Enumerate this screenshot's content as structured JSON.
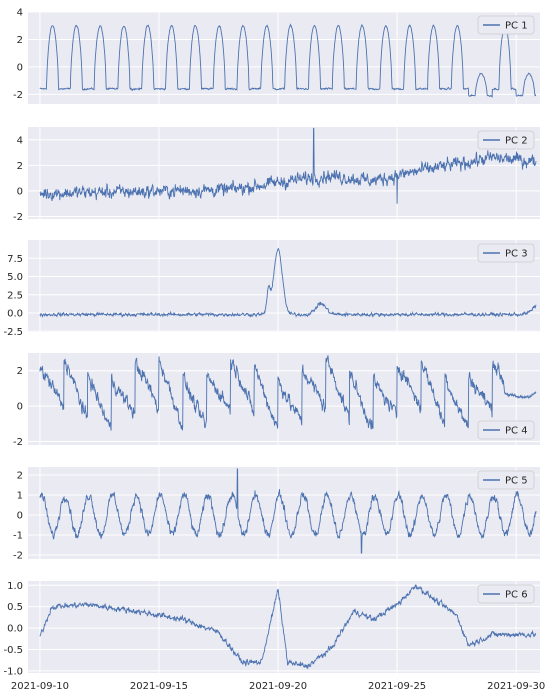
{
  "figure": {
    "background": "#ffffff",
    "panel_background": "#eaeaf2",
    "grid_color": "#ffffff",
    "line_color": "#4c72b0"
  },
  "chart_data": [
    {
      "type": "line",
      "series": [
        {
          "name": "PC 1"
        }
      ],
      "legend": "top-right",
      "ylim": [
        -2.7,
        4.0
      ],
      "yticks": [
        "-2",
        "0",
        "2",
        "4"
      ],
      "ytick_values": [
        -2,
        0,
        2,
        4
      ],
      "grid": true,
      "pattern": {
        "shape": "daily-cycle",
        "base": -1.6,
        "amplitude": 4.6,
        "dip_days": [
          18,
          20,
          25,
          29
        ],
        "noise": 0.1
      }
    },
    {
      "type": "line",
      "series": [
        {
          "name": "PC 2"
        }
      ],
      "legend": "top-right",
      "ylim": [
        -2.2,
        5.0
      ],
      "yticks": [
        "-2",
        "0",
        "2",
        "4"
      ],
      "ytick_values": [
        -2,
        0,
        2,
        4
      ],
      "grid": true,
      "pattern": {
        "shape": "noisy-level",
        "segments": [
          [
            0,
            -0.2
          ],
          [
            8,
            0.1
          ],
          [
            12,
            1.2
          ],
          [
            14,
            0.8
          ],
          [
            16,
            1.6
          ],
          [
            19,
            2.6
          ],
          [
            21,
            2.3
          ],
          [
            23,
            0.3
          ],
          [
            26,
            -0.7
          ],
          [
            27,
            -1.2
          ],
          [
            31.2,
            -1.0
          ]
        ],
        "noise": 0.8,
        "extremes": [
          [
            11.5,
            4.9
          ],
          [
            15.0,
            -1.0
          ],
          [
            21.9,
            3.9
          ]
        ]
      }
    },
    {
      "type": "line",
      "series": [
        {
          "name": "PC 3"
        }
      ],
      "legend": "top-right",
      "ylim": [
        -2.6,
        10.0
      ],
      "yticks": [
        "-2.5",
        "0.0",
        "2.5",
        "5.0",
        "7.5"
      ],
      "ytick_values": [
        -2.5,
        0,
        2.5,
        5,
        7.5
      ],
      "grid": true,
      "pattern": {
        "shape": "flat-with-spikes",
        "base": -0.2,
        "noise": 0.35,
        "spikes": [
          [
            9.6,
            3.2,
            0.1
          ],
          [
            10.0,
            9.0,
            0.25
          ],
          [
            11.8,
            1.5,
            0.3
          ],
          [
            21.3,
            3.2,
            0.5
          ]
        ]
      }
    },
    {
      "type": "line",
      "series": [
        {
          "name": "PC 4"
        }
      ],
      "legend": "bottom-right",
      "ylim": [
        -2.2,
        3.0
      ],
      "yticks": [
        "-2",
        "0",
        "2"
      ],
      "ytick_values": [
        -2,
        0,
        2
      ],
      "grid": true,
      "pattern": {
        "shape": "sawtooth-drops",
        "base": 0.8,
        "amplitude": 2.2,
        "noise": 0.6,
        "calm_from_day": 19.5,
        "calm_level": 0.8
      }
    },
    {
      "type": "line",
      "series": [
        {
          "name": "PC 5"
        }
      ],
      "legend": "top-right",
      "ylim": [
        -2.2,
        2.4
      ],
      "yticks": [
        "-2",
        "-1",
        "0",
        "1",
        "2"
      ],
      "ytick_values": [
        -2,
        -1,
        0,
        1,
        2
      ],
      "grid": true,
      "pattern": {
        "shape": "daily-oscillation",
        "base": 0.0,
        "amplitude": 1.0,
        "noise": 0.35,
        "extremes": [
          [
            8.3,
            2.3
          ],
          [
            13.5,
            -1.9
          ]
        ]
      }
    },
    {
      "type": "line",
      "series": [
        {
          "name": "PC 6"
        }
      ],
      "legend": "top-right",
      "ylim": [
        -1.05,
        1.1
      ],
      "yticks": [
        "-1.0",
        "-0.5",
        "0.0",
        "0.5",
        "1.0"
      ],
      "ytick_values": [
        -1.0,
        -0.5,
        0.0,
        0.5,
        1.0
      ],
      "grid": true,
      "pattern": {
        "shape": "slow-wave",
        "segments": [
          [
            0,
            -0.2
          ],
          [
            0.5,
            0.5
          ],
          [
            2,
            0.55
          ],
          [
            4,
            0.4
          ],
          [
            6,
            0.2
          ],
          [
            7.5,
            -0.1
          ],
          [
            8.5,
            -0.8
          ],
          [
            9.3,
            -0.8
          ],
          [
            10.0,
            0.9
          ],
          [
            10.4,
            -0.8
          ],
          [
            11.2,
            -0.9
          ],
          [
            12.2,
            -0.5
          ],
          [
            13.2,
            0.4
          ],
          [
            14.0,
            0.2
          ],
          [
            15.0,
            0.55
          ],
          [
            15.8,
            1.0
          ],
          [
            16.6,
            0.65
          ],
          [
            17.5,
            0.3
          ],
          [
            18.0,
            -0.4
          ],
          [
            19,
            -0.15
          ],
          [
            21,
            -0.15
          ],
          [
            22.5,
            0.35
          ],
          [
            23.6,
            0.5
          ],
          [
            24.0,
            0.05
          ]
        ],
        "noise": 0.1
      }
    }
  ],
  "x_axis": {
    "type": "date",
    "range": [
      "2021-09-09T12:00",
      "2021-10-01T00:00"
    ],
    "data_range": [
      "2021-09-10T00:00",
      "2021-09-30T20:00"
    ],
    "tick_labels": [
      "2021-09-10",
      "2021-09-15",
      "2021-09-20",
      "2021-09-25",
      "2021-09-30"
    ],
    "tick_dates": [
      "2021-09-10",
      "2021-09-15",
      "2021-09-20",
      "2021-09-25",
      "2021-09-30"
    ]
  }
}
